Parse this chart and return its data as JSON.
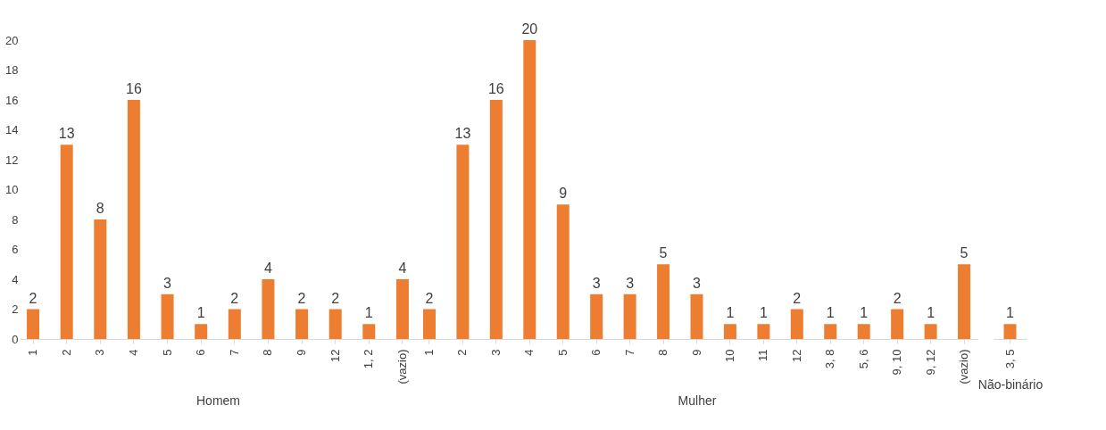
{
  "chart_data": [
    {
      "type": "bar",
      "xlabel": "Homem",
      "categories": [
        "1",
        "2",
        "3",
        "4",
        "5",
        "6",
        "7",
        "8",
        "9",
        "12",
        "1, 2",
        "(vazio)"
      ],
      "values": [
        2,
        13,
        8,
        16,
        3,
        1,
        2,
        4,
        2,
        2,
        1,
        4
      ],
      "color": "#ed7d31",
      "ylim": [
        0,
        20
      ],
      "yticks": [
        0,
        2,
        4,
        6,
        8,
        10,
        12,
        14,
        16,
        18,
        20
      ],
      "grid": false,
      "data_labels": true
    },
    {
      "type": "bar",
      "xlabel": "Mulher",
      "categories": [
        "1",
        "2",
        "3",
        "4",
        "5",
        "6",
        "7",
        "8",
        "9",
        "10",
        "11",
        "12",
        "3, 8",
        "5, 6",
        "9, 10",
        "9, 12",
        "(vazio)"
      ],
      "values": [
        2,
        13,
        16,
        20,
        9,
        3,
        3,
        5,
        3,
        1,
        1,
        2,
        1,
        1,
        2,
        1,
        5
      ],
      "color": "#ed7d31",
      "ylim": [
        0,
        20
      ],
      "grid": false,
      "data_labels": true,
      "tick_labels": "x"
    },
    {
      "type": "bar",
      "xlabel": "Não-binário",
      "categories": [
        "3, 5"
      ],
      "values": [
        1
      ],
      "color": "#ed7d31",
      "ylim": [
        0,
        20
      ],
      "grid": false,
      "data_labels": true,
      "tick_labels": "x"
    }
  ]
}
